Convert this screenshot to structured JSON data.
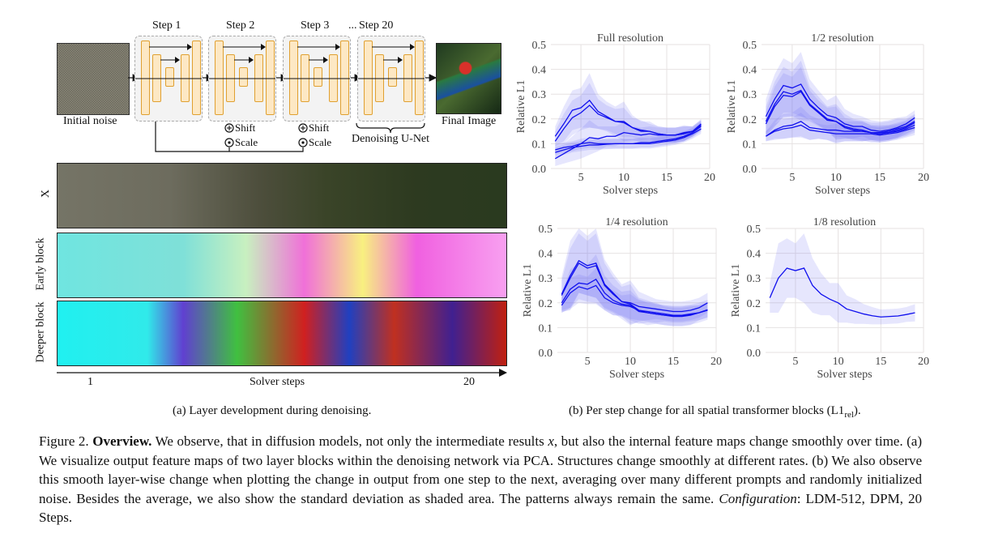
{
  "diagram": {
    "steps": [
      "Step 1",
      "Step 2",
      "Step 3",
      "Step 20"
    ],
    "ellipsis": "...",
    "initial_label": "Initial noise",
    "final_label": "Final Image",
    "shift_label": "Shift",
    "scale_label": "Scale",
    "unet_label": "Denoising U-Net"
  },
  "strips": {
    "rows": [
      "X",
      "Early block",
      "Deeper block"
    ],
    "axis_label": "Solver steps",
    "axis_start": "1",
    "axis_end": "20"
  },
  "subcaptions": {
    "a": "(a) Layer development during denoising.",
    "b_prefix": "(b) Per step change for all spatial transformer blocks (L1",
    "b_sub": "rel",
    "b_suffix": ")."
  },
  "caption": {
    "fig": "Figure 2.",
    "bold": "Overview.",
    "t1": " We observe, that in diffusion models, not only the intermediate results ",
    "var": "x",
    "t2": ", but also the internal feature maps change smoothly over time. (a) We visualize output feature maps of two layer blocks within the denoising network via PCA. Structures change smoothly at different rates. (b) We also observe this smooth layer-wise change when plotting the change in output from one step to the next, averaging over many different prompts and randomly initialized noise. Besides the average, we also show the standard deviation as shaded area. The patterns always remain the same. ",
    "config_label": "Configuration",
    "t3": ": LDM-512, DPM, 20 Steps."
  },
  "colors": {
    "line": "#1010ee",
    "band": "#6a6af5",
    "grid": "#e6e2e2",
    "block_fill": "#fde8c4",
    "block_border": "#e0a030"
  },
  "chart_data": [
    {
      "type": "line",
      "title": "Full resolution",
      "xlabel": "Solver steps",
      "ylabel": "Relative L1",
      "xlim": [
        1.5,
        20
      ],
      "ylim": [
        0,
        0.5
      ],
      "xticks": [
        5,
        10,
        15,
        20
      ],
      "yticks": [
        0.0,
        0.1,
        0.2,
        0.3,
        0.4,
        0.5
      ],
      "grid": true,
      "x": [
        2,
        3,
        4,
        5,
        6,
        7,
        8,
        9,
        10,
        11,
        12,
        13,
        14,
        15,
        16,
        17,
        18,
        19
      ],
      "series": [
        {
          "values": [
            0.13,
            0.18,
            0.235,
            0.245,
            0.275,
            0.23,
            0.21,
            0.19,
            0.19,
            0.165,
            0.15,
            0.15,
            0.14,
            0.135,
            0.135,
            0.145,
            0.15,
            0.18
          ],
          "std": [
            0.04,
            0.07,
            0.08,
            0.08,
            0.11,
            0.07,
            0.06,
            0.06,
            0.08,
            0.05,
            0.04,
            0.04,
            0.03,
            0.03,
            0.03,
            0.03,
            0.02,
            0.02
          ]
        },
        {
          "values": [
            0.11,
            0.16,
            0.205,
            0.225,
            0.255,
            0.22,
            0.205,
            0.19,
            0.185,
            0.165,
            0.155,
            0.15,
            0.14,
            0.135,
            0.135,
            0.14,
            0.15,
            0.175
          ],
          "std": [
            0.04,
            0.06,
            0.07,
            0.07,
            0.09,
            0.06,
            0.05,
            0.05,
            0.06,
            0.04,
            0.04,
            0.03,
            0.03,
            0.03,
            0.03,
            0.03,
            0.02,
            0.02
          ]
        },
        {
          "values": [
            0.04,
            0.06,
            0.08,
            0.1,
            0.125,
            0.12,
            0.13,
            0.13,
            0.145,
            0.14,
            0.135,
            0.14,
            0.135,
            0.135,
            0.135,
            0.14,
            0.15,
            0.175
          ],
          "std": [
            0.03,
            0.04,
            0.05,
            0.06,
            0.07,
            0.05,
            0.04,
            0.04,
            0.04,
            0.03,
            0.03,
            0.03,
            0.03,
            0.03,
            0.03,
            0.03,
            0.02,
            0.02
          ]
        },
        {
          "values": [
            0.075,
            0.085,
            0.09,
            0.1,
            0.105,
            0.1,
            0.1,
            0.1,
            0.1,
            0.1,
            0.105,
            0.105,
            0.11,
            0.115,
            0.12,
            0.13,
            0.145,
            0.17
          ],
          "std": [
            0.02,
            0.02,
            0.02,
            0.02,
            0.02,
            0.02,
            0.02,
            0.02,
            0.02,
            0.02,
            0.02,
            0.02,
            0.02,
            0.02,
            0.02,
            0.02,
            0.02,
            0.02
          ]
        },
        {
          "values": [
            0.065,
            0.075,
            0.085,
            0.09,
            0.095,
            0.095,
            0.098,
            0.1,
            0.1,
            0.1,
            0.1,
            0.1,
            0.105,
            0.11,
            0.115,
            0.125,
            0.14,
            0.16
          ],
          "std": [
            0.02,
            0.02,
            0.02,
            0.02,
            0.02,
            0.02,
            0.02,
            0.02,
            0.02,
            0.02,
            0.02,
            0.02,
            0.02,
            0.02,
            0.02,
            0.02,
            0.02,
            0.02
          ]
        }
      ]
    },
    {
      "type": "line",
      "title": "1/2 resolution",
      "xlabel": "Solver steps",
      "ylabel": "Relative L1",
      "xlim": [
        1.5,
        20
      ],
      "ylim": [
        0,
        0.5
      ],
      "xticks": [
        5,
        10,
        15,
        20
      ],
      "yticks": [
        0.0,
        0.1,
        0.2,
        0.3,
        0.4,
        0.5
      ],
      "grid": true,
      "x": [
        2,
        3,
        4,
        5,
        6,
        7,
        8,
        9,
        10,
        11,
        12,
        13,
        14,
        15,
        16,
        17,
        18,
        19
      ],
      "series": [
        {
          "values": [
            0.21,
            0.28,
            0.335,
            0.325,
            0.34,
            0.28,
            0.245,
            0.215,
            0.205,
            0.18,
            0.17,
            0.17,
            0.155,
            0.15,
            0.155,
            0.165,
            0.18,
            0.205
          ],
          "std": [
            0.07,
            0.1,
            0.11,
            0.1,
            0.13,
            0.08,
            0.07,
            0.06,
            0.09,
            0.06,
            0.05,
            0.04,
            0.04,
            0.04,
            0.04,
            0.04,
            0.03,
            0.03
          ]
        },
        {
          "values": [
            0.19,
            0.26,
            0.31,
            0.3,
            0.315,
            0.26,
            0.23,
            0.2,
            0.19,
            0.17,
            0.16,
            0.155,
            0.145,
            0.145,
            0.15,
            0.16,
            0.17,
            0.19
          ],
          "std": [
            0.06,
            0.09,
            0.1,
            0.09,
            0.12,
            0.07,
            0.06,
            0.05,
            0.07,
            0.05,
            0.04,
            0.04,
            0.04,
            0.04,
            0.04,
            0.04,
            0.03,
            0.03
          ]
        },
        {
          "values": [
            0.18,
            0.25,
            0.295,
            0.29,
            0.31,
            0.255,
            0.225,
            0.195,
            0.19,
            0.165,
            0.155,
            0.15,
            0.145,
            0.14,
            0.145,
            0.155,
            0.165,
            0.185
          ],
          "std": [
            0.05,
            0.08,
            0.09,
            0.08,
            0.1,
            0.06,
            0.05,
            0.05,
            0.06,
            0.04,
            0.04,
            0.04,
            0.03,
            0.03,
            0.03,
            0.03,
            0.03,
            0.03
          ]
        },
        {
          "values": [
            0.13,
            0.155,
            0.17,
            0.175,
            0.19,
            0.165,
            0.16,
            0.155,
            0.155,
            0.15,
            0.15,
            0.15,
            0.145,
            0.145,
            0.145,
            0.15,
            0.16,
            0.175
          ],
          "std": [
            0.02,
            0.04,
            0.05,
            0.05,
            0.06,
            0.05,
            0.04,
            0.04,
            0.05,
            0.04,
            0.04,
            0.04,
            0.03,
            0.03,
            0.03,
            0.03,
            0.03,
            0.03
          ]
        },
        {
          "values": [
            0.13,
            0.15,
            0.16,
            0.165,
            0.175,
            0.155,
            0.15,
            0.145,
            0.14,
            0.14,
            0.14,
            0.14,
            0.14,
            0.135,
            0.14,
            0.145,
            0.155,
            0.165
          ],
          "std": [
            0.02,
            0.03,
            0.04,
            0.04,
            0.05,
            0.04,
            0.03,
            0.03,
            0.04,
            0.03,
            0.03,
            0.03,
            0.03,
            0.03,
            0.03,
            0.03,
            0.03,
            0.03
          ]
        }
      ]
    },
    {
      "type": "line",
      "title": "1/4 resolution",
      "xlabel": "Solver steps",
      "ylabel": "Relative L1",
      "xlim": [
        1.5,
        20
      ],
      "ylim": [
        0,
        0.5
      ],
      "xticks": [
        5,
        10,
        15,
        20
      ],
      "yticks": [
        0.0,
        0.1,
        0.2,
        0.3,
        0.4,
        0.5
      ],
      "grid": true,
      "x": [
        2,
        3,
        4,
        5,
        6,
        7,
        8,
        9,
        10,
        11,
        12,
        13,
        14,
        15,
        16,
        17,
        18,
        19
      ],
      "series": [
        {
          "values": [
            0.235,
            0.31,
            0.37,
            0.35,
            0.36,
            0.275,
            0.24,
            0.205,
            0.2,
            0.185,
            0.18,
            0.175,
            0.17,
            0.165,
            0.165,
            0.17,
            0.18,
            0.2
          ],
          "std": [
            0.07,
            0.14,
            0.13,
            0.12,
            0.14,
            0.1,
            0.08,
            0.07,
            0.09,
            0.06,
            0.05,
            0.04,
            0.04,
            0.04,
            0.04,
            0.04,
            0.04,
            0.04
          ]
        },
        {
          "values": [
            0.23,
            0.3,
            0.36,
            0.34,
            0.35,
            0.27,
            0.235,
            0.205,
            0.195,
            0.17,
            0.16,
            0.155,
            0.15,
            0.148,
            0.148,
            0.152,
            0.16,
            0.172
          ],
          "std": [
            0.06,
            0.12,
            0.12,
            0.11,
            0.13,
            0.09,
            0.07,
            0.06,
            0.08,
            0.05,
            0.05,
            0.04,
            0.04,
            0.04,
            0.04,
            0.04,
            0.04,
            0.04
          ]
        },
        {
          "values": [
            0.2,
            0.255,
            0.28,
            0.275,
            0.295,
            0.24,
            0.21,
            0.195,
            0.19,
            0.165,
            0.16,
            0.155,
            0.15,
            0.145,
            0.145,
            0.15,
            0.16,
            0.17
          ],
          "std": [
            0.04,
            0.08,
            0.08,
            0.08,
            0.1,
            0.07,
            0.06,
            0.05,
            0.06,
            0.05,
            0.04,
            0.04,
            0.04,
            0.04,
            0.04,
            0.04,
            0.03,
            0.03
          ]
        },
        {
          "values": [
            0.19,
            0.24,
            0.265,
            0.255,
            0.27,
            0.22,
            0.2,
            0.19,
            0.185,
            0.17,
            0.165,
            0.16,
            0.155,
            0.15,
            0.15,
            0.155,
            0.16,
            0.172
          ],
          "std": [
            0.03,
            0.06,
            0.05,
            0.05,
            0.07,
            0.05,
            0.05,
            0.04,
            0.05,
            0.04,
            0.04,
            0.04,
            0.03,
            0.03,
            0.03,
            0.03,
            0.03,
            0.03
          ]
        }
      ]
    },
    {
      "type": "line",
      "title": "1/8 resolution",
      "xlabel": "Solver steps",
      "ylabel": "Relative L1",
      "xlim": [
        1.5,
        20
      ],
      "ylim": [
        0,
        0.5
      ],
      "xticks": [
        5,
        10,
        15,
        20
      ],
      "yticks": [
        0.0,
        0.1,
        0.2,
        0.3,
        0.4,
        0.5
      ],
      "grid": true,
      "x": [
        2,
        3,
        4,
        5,
        6,
        7,
        8,
        9,
        10,
        11,
        12,
        13,
        14,
        15,
        16,
        17,
        18,
        19
      ],
      "series": [
        {
          "values": [
            0.22,
            0.3,
            0.34,
            0.33,
            0.34,
            0.27,
            0.235,
            0.215,
            0.2,
            0.175,
            0.165,
            0.155,
            0.148,
            0.143,
            0.145,
            0.147,
            0.153,
            0.16
          ],
          "std": [
            0.06,
            0.14,
            0.12,
            0.11,
            0.14,
            0.11,
            0.085,
            0.065,
            0.08,
            0.055,
            0.05,
            0.04,
            0.035,
            0.03,
            0.03,
            0.03,
            0.03,
            0.035
          ]
        }
      ]
    }
  ]
}
